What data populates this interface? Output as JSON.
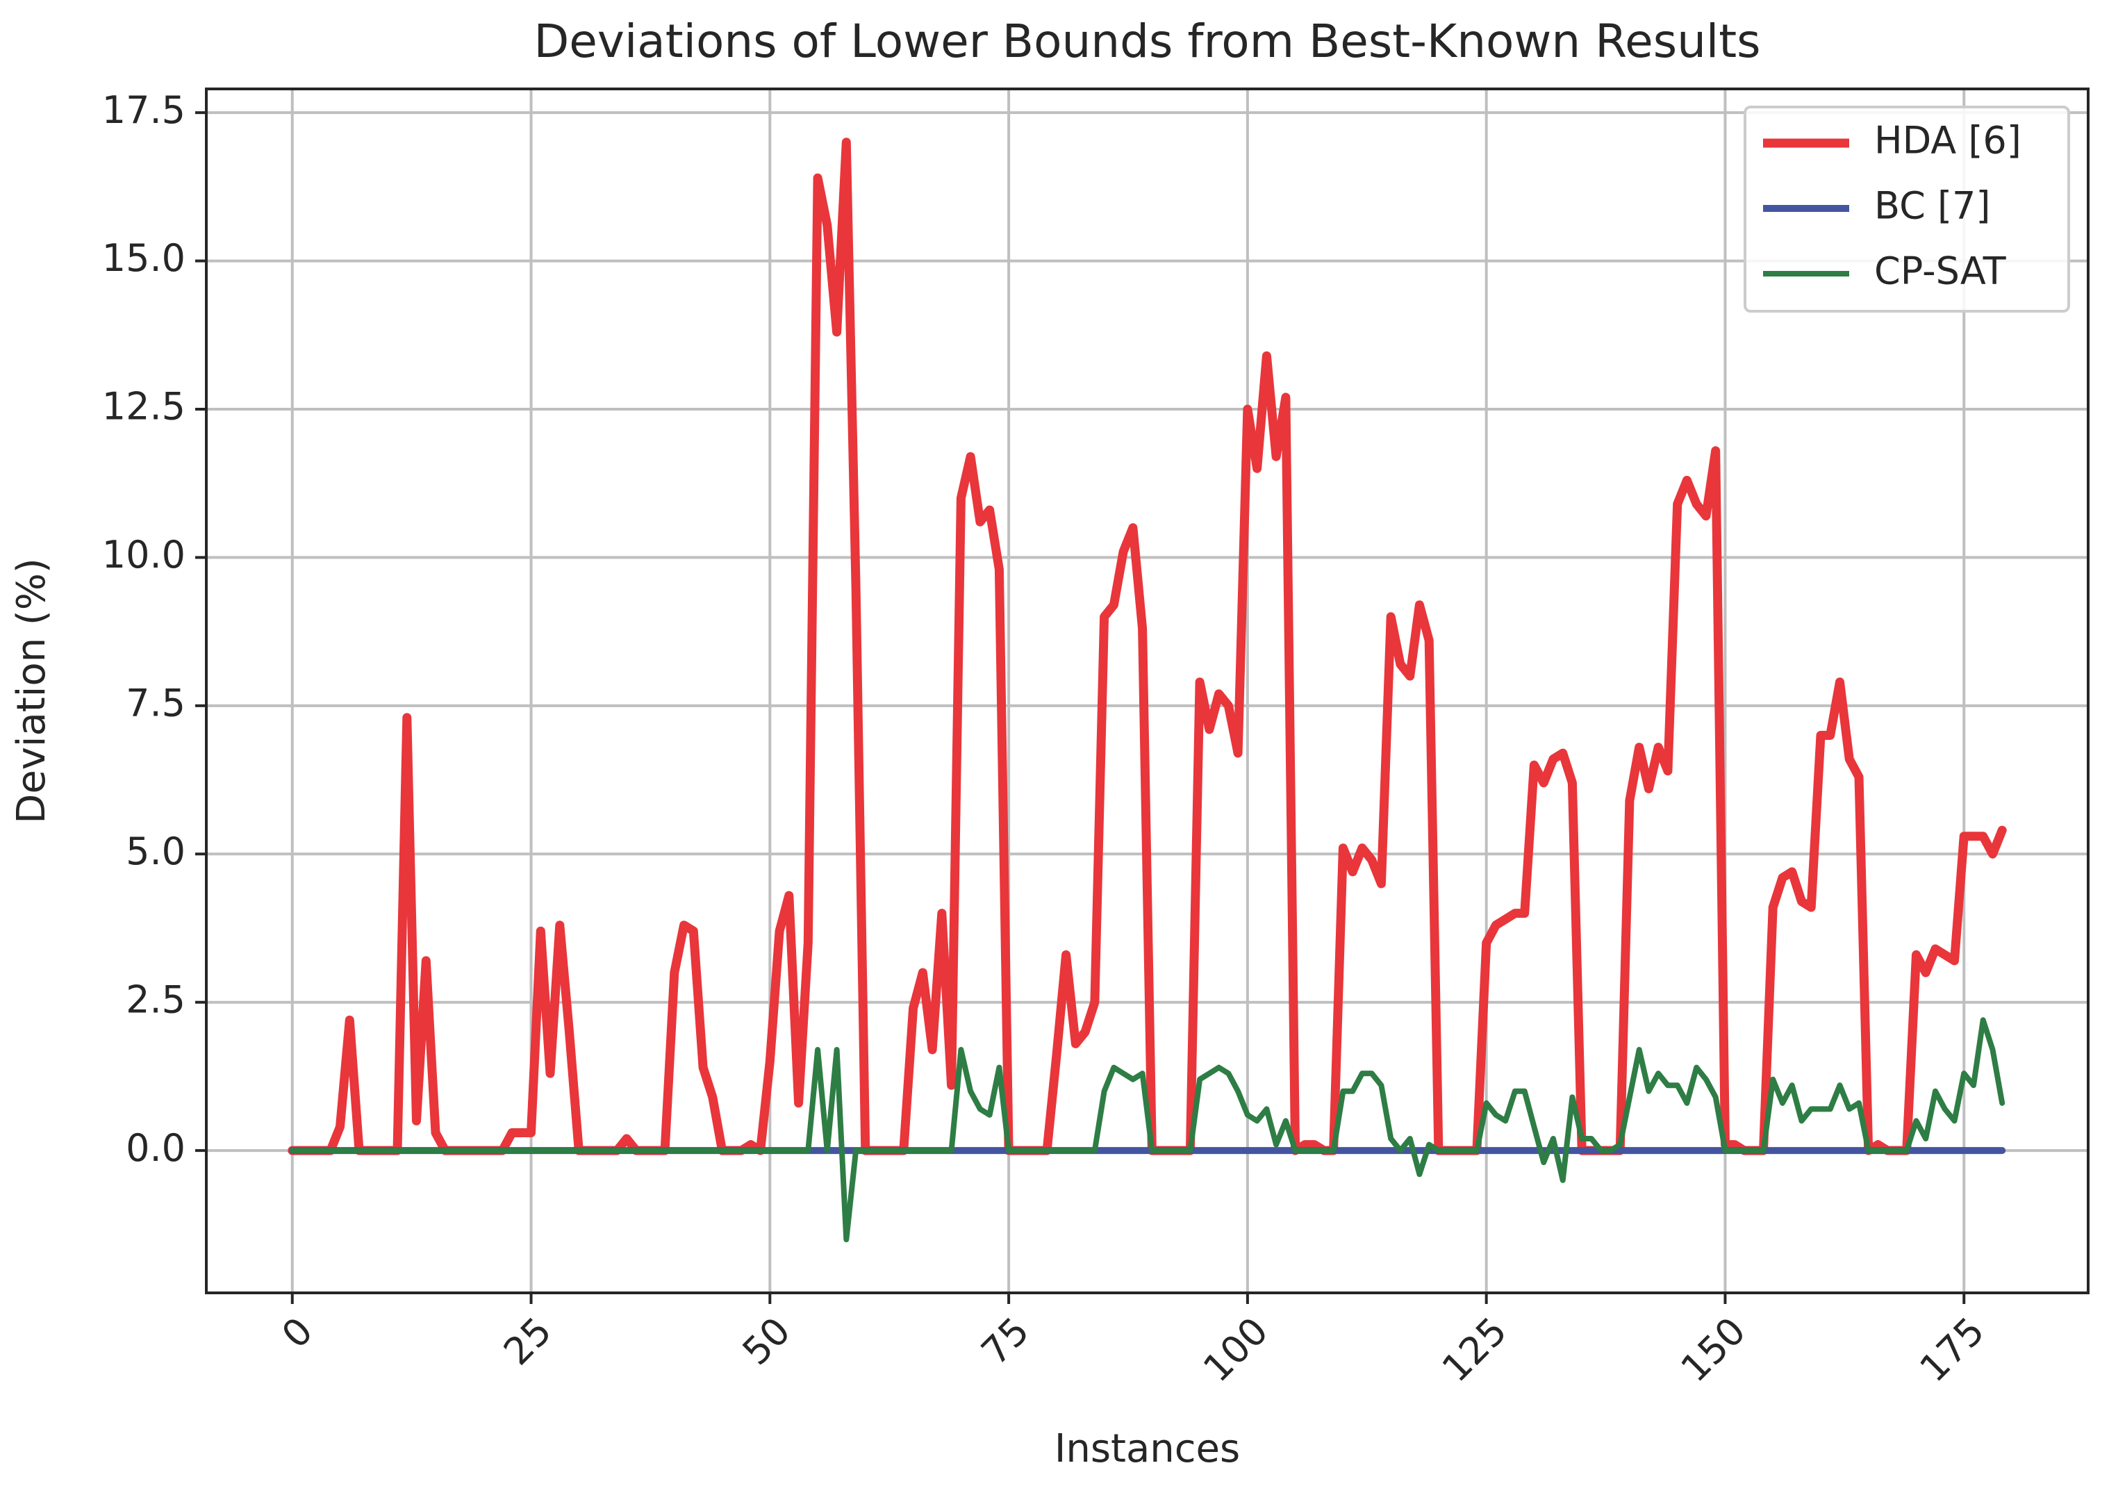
{
  "chart_data": {
    "type": "line",
    "title": "Deviations of Lower Bounds from Best-Known Results",
    "xlabel": "Instances",
    "ylabel": "Deviation (%)",
    "xlim": [
      -9,
      188
    ],
    "ylim": [
      -2.4,
      17.9
    ],
    "xticks": [
      0,
      25,
      50,
      75,
      100,
      125,
      150,
      175
    ],
    "xtick_labels": [
      "0",
      "25",
      "50",
      "75",
      "100",
      "125",
      "150",
      "175"
    ],
    "xtick_rotation": 45,
    "yticks": [
      0.0,
      2.5,
      5.0,
      7.5,
      10.0,
      12.5,
      15.0,
      17.5
    ],
    "ytick_labels": [
      "0.0",
      "2.5",
      "5.0",
      "7.5",
      "10.0",
      "12.5",
      "15.0",
      "17.5"
    ],
    "grid": true,
    "legend_position": "top-right",
    "series": [
      {
        "name": "HDA [6]",
        "color": "#e8363b",
        "values": [
          0,
          0,
          0,
          0,
          0,
          0.4,
          2.2,
          0,
          0,
          0,
          0,
          0,
          7.3,
          0.5,
          3.2,
          0.3,
          0,
          0,
          0,
          0,
          0,
          0,
          0,
          0.3,
          0.3,
          0.3,
          3.7,
          1.3,
          3.8,
          2.0,
          0,
          0,
          0,
          0,
          0,
          0.2,
          0,
          0,
          0,
          0,
          3.0,
          3.8,
          3.7,
          1.4,
          0.9,
          0,
          0,
          0,
          0.1,
          0,
          1.5,
          3.7,
          4.3,
          0.8,
          3.5,
          16.4,
          15.6,
          13.8,
          17.0,
          9.5,
          0,
          0,
          0,
          0,
          0,
          2.4,
          3.0,
          1.7,
          4.0,
          1.1,
          11.0,
          11.7,
          10.6,
          10.8,
          9.8,
          0,
          0,
          0,
          0,
          0,
          1.6,
          3.3,
          1.8,
          2.0,
          2.5,
          9.0,
          9.2,
          10.1,
          10.5,
          8.8,
          0,
          0,
          0,
          0,
          0,
          7.9,
          7.1,
          7.7,
          7.5,
          6.7,
          12.5,
          11.5,
          13.4,
          11.7,
          12.7,
          0,
          0.1,
          0.1,
          0,
          0,
          5.1,
          4.7,
          5.1,
          4.9,
          4.5,
          9.0,
          8.2,
          8.0,
          9.2,
          8.6,
          0,
          0,
          0,
          0,
          0,
          3.5,
          3.8,
          3.9,
          4.0,
          4.0,
          6.5,
          6.2,
          6.6,
          6.7,
          6.2,
          0,
          0,
          0,
          0,
          0,
          5.9,
          6.8,
          6.1,
          6.8,
          6.4,
          10.9,
          11.3,
          10.9,
          10.7,
          11.8,
          0.1,
          0.1,
          0,
          0,
          0,
          4.1,
          4.6,
          4.7,
          4.2,
          4.1,
          7.0,
          7.0,
          7.9,
          6.6,
          6.3,
          0,
          0.1,
          0,
          0,
          0,
          3.3,
          3.0,
          3.4,
          3.3,
          3.2,
          5.3,
          5.3,
          5.3,
          5.0,
          5.4
        ]
      },
      {
        "name": "BC [7]",
        "color": "#4455a0",
        "values": [
          0,
          0,
          0,
          0,
          0,
          0,
          0,
          0,
          0,
          0,
          0,
          0,
          0,
          0,
          0,
          0,
          0,
          0,
          0,
          0,
          0,
          0,
          0,
          0,
          0,
          0,
          0,
          0,
          0,
          0,
          0,
          0,
          0,
          0,
          0,
          0,
          0,
          0,
          0,
          0,
          0,
          0,
          0,
          0,
          0,
          0,
          0,
          0,
          0,
          0,
          0,
          0,
          0,
          0,
          0,
          0,
          0,
          0,
          0,
          0,
          0,
          0,
          0,
          0,
          0,
          0,
          0,
          0,
          0,
          0,
          0,
          0,
          0,
          0,
          0,
          0,
          0,
          0,
          0,
          0,
          0,
          0,
          0,
          0,
          0,
          0,
          0,
          0,
          0,
          0,
          0,
          0,
          0,
          0,
          0,
          0,
          0,
          0,
          0,
          0,
          0,
          0,
          0,
          0,
          0,
          0,
          0,
          0,
          0,
          0,
          0,
          0,
          0,
          0,
          0,
          0,
          0,
          0,
          0,
          0,
          0,
          0,
          0,
          0,
          0,
          0,
          0,
          0,
          0,
          0,
          0,
          0,
          0,
          0,
          0,
          0,
          0,
          0,
          0,
          0,
          0,
          0,
          0,
          0,
          0,
          0,
          0,
          0,
          0,
          0,
          0,
          0,
          0,
          0,
          0,
          0,
          0,
          0,
          0,
          0,
          0,
          0,
          0,
          0,
          0,
          0,
          0,
          0,
          0,
          0,
          0,
          0,
          0,
          0,
          0,
          0,
          0,
          0,
          0,
          0
        ]
      },
      {
        "name": "CP-SAT",
        "color": "#2e7d45",
        "values": [
          0,
          0,
          0,
          0,
          0,
          0,
          0,
          0,
          0,
          0,
          0,
          0,
          0,
          0,
          0,
          0,
          0,
          0,
          0,
          0,
          0,
          0,
          0,
          0,
          0,
          0,
          0,
          0,
          0,
          0,
          0,
          0,
          0,
          0,
          0,
          0,
          0,
          0,
          0,
          0,
          0,
          0,
          0,
          0,
          0,
          0,
          0,
          0,
          0,
          0,
          0,
          0,
          0,
          0,
          0,
          1.7,
          0,
          1.7,
          -1.5,
          0,
          0,
          0,
          0,
          0,
          0,
          0,
          0,
          0,
          0,
          0,
          1.7,
          1.0,
          0.7,
          0.6,
          1.4,
          0,
          0,
          0,
          0,
          0,
          0,
          0,
          0,
          0,
          0,
          1.0,
          1.4,
          1.3,
          1.2,
          1.3,
          0,
          0,
          0,
          0,
          0,
          1.2,
          1.3,
          1.4,
          1.3,
          1.0,
          0.6,
          0.5,
          0.7,
          0.1,
          0.5,
          0,
          0,
          0,
          0,
          0,
          1.0,
          1.0,
          1.3,
          1.3,
          1.1,
          0.2,
          0,
          0.2,
          -0.4,
          0.1,
          0,
          0,
          0,
          0,
          0,
          0.8,
          0.6,
          0.5,
          1.0,
          1.0,
          0.4,
          -0.2,
          0.2,
          -0.5,
          0.9,
          0.2,
          0.2,
          0,
          0,
          0.1,
          0.9,
          1.7,
          1.0,
          1.3,
          1.1,
          1.1,
          0.8,
          1.4,
          1.2,
          0.9,
          0,
          0,
          0,
          0,
          0,
          1.2,
          0.8,
          1.1,
          0.5,
          0.7,
          0.7,
          0.7,
          1.1,
          0.7,
          0.8,
          0,
          0,
          0,
          0,
          0,
          0.5,
          0.2,
          1.0,
          0.7,
          0.5,
          1.3,
          1.1,
          2.2,
          1.7,
          0.8
        ]
      }
    ]
  }
}
